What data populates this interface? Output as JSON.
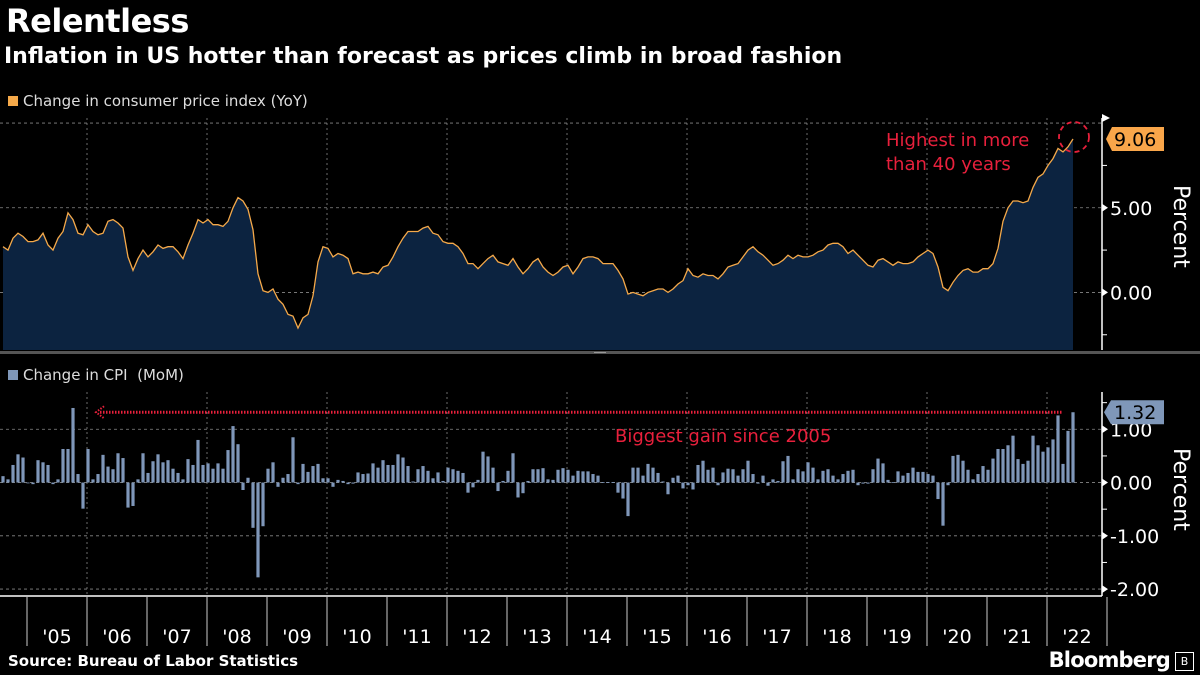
{
  "header": {
    "title": "Relentless",
    "subtitle": "Inflation in US hotter than forecast as prices climb in broad fashion"
  },
  "footer": {
    "source": "Source: Bureau of Labor Statistics",
    "brand": "Bloomberg"
  },
  "colors": {
    "background": "#000000",
    "yoy_line": "#f5a94a",
    "yoy_fill": "#0c2340",
    "mom_bars": "#7f97b9",
    "annotation": "#e8203c"
  },
  "chart_data": [
    {
      "type": "area",
      "legend": "Change in consumer price index (YoY)",
      "ylabel": "Percent",
      "y_ticks": [
        "5.00",
        "0.00"
      ],
      "ylim": [
        -3.4,
        10.3
      ],
      "x_start": "2004-08",
      "x_end": "2022-06",
      "frequency": "monthly",
      "last_value_label": "9.06",
      "annotation": [
        "Highest in more",
        "than 40 years"
      ],
      "values": [
        2.7,
        2.5,
        3.2,
        3.5,
        3.3,
        3.0,
        3.0,
        3.1,
        3.5,
        2.8,
        2.5,
        3.2,
        3.6,
        4.7,
        4.3,
        3.5,
        3.4,
        4.0,
        3.6,
        3.4,
        3.5,
        4.2,
        4.3,
        4.1,
        3.8,
        2.1,
        1.3,
        2.0,
        2.5,
        2.1,
        2.4,
        2.8,
        2.6,
        2.7,
        2.7,
        2.4,
        2.0,
        2.8,
        3.5,
        4.3,
        4.1,
        4.3,
        4.0,
        4.0,
        3.9,
        4.2,
        5.0,
        5.6,
        5.4,
        4.9,
        3.7,
        1.1,
        0.1,
        0.0,
        0.2,
        -0.4,
        -0.7,
        -1.3,
        -1.4,
        -2.1,
        -1.5,
        -1.3,
        -0.2,
        1.8,
        2.7,
        2.6,
        2.1,
        2.3,
        2.2,
        2.0,
        1.1,
        1.2,
        1.1,
        1.1,
        1.2,
        1.1,
        1.5,
        1.6,
        2.1,
        2.7,
        3.2,
        3.6,
        3.6,
        3.6,
        3.8,
        3.9,
        3.5,
        3.4,
        3.0,
        2.9,
        2.9,
        2.7,
        2.3,
        1.7,
        1.7,
        1.4,
        1.7,
        2.0,
        2.2,
        1.8,
        1.7,
        1.6,
        2.0,
        1.5,
        1.1,
        1.4,
        1.8,
        2.0,
        1.5,
        1.2,
        1.0,
        1.2,
        1.5,
        1.6,
        1.1,
        1.5,
        2.0,
        2.1,
        2.1,
        2.0,
        1.7,
        1.7,
        1.7,
        1.3,
        0.8,
        -0.1,
        0.0,
        -0.1,
        -0.2,
        0.0,
        0.1,
        0.2,
        0.2,
        0.0,
        0.2,
        0.5,
        0.7,
        1.4,
        1.0,
        0.9,
        1.1,
        1.0,
        1.0,
        0.8,
        1.1,
        1.5,
        1.6,
        1.7,
        2.1,
        2.5,
        2.7,
        2.4,
        2.2,
        1.9,
        1.6,
        1.7,
        1.9,
        2.2,
        2.0,
        2.2,
        2.1,
        2.1,
        2.2,
        2.4,
        2.5,
        2.8,
        2.9,
        2.9,
        2.7,
        2.3,
        2.5,
        2.2,
        1.9,
        1.6,
        1.5,
        1.9,
        2.0,
        1.8,
        1.6,
        1.8,
        1.7,
        1.7,
        1.8,
        2.1,
        2.3,
        2.5,
        2.3,
        1.5,
        0.3,
        0.1,
        0.6,
        1.0,
        1.3,
        1.4,
        1.2,
        1.2,
        1.4,
        1.4,
        1.7,
        2.6,
        4.2,
        5.0,
        5.4,
        5.4,
        5.3,
        5.4,
        6.2,
        6.8,
        7.0,
        7.5,
        7.9,
        8.5,
        8.3,
        8.6,
        9.06
      ]
    },
    {
      "type": "bar",
      "legend": "Change in CPI  (MoM)",
      "ylabel": "Percent",
      "y_ticks": [
        "1.00",
        "0.00",
        "-1.00",
        "-2.00"
      ],
      "ylim": [
        -2.13,
        1.7
      ],
      "x_start": "2004-08",
      "x_end": "2022-06",
      "frequency": "monthly",
      "last_value_label": "1.32",
      "annotation": "Biggest gain since 2005",
      "values": [
        0.12,
        0.06,
        0.33,
        0.53,
        0.47,
        0,
        -0.03,
        0.42,
        0.38,
        0.33,
        -0.03,
        0.06,
        0.63,
        0.63,
        1.4,
        0.16,
        -0.49,
        0.63,
        0.06,
        0.16,
        0.52,
        0.3,
        0.25,
        0.55,
        0.46,
        -0.47,
        -0.44,
        0.06,
        0.55,
        0.18,
        0.4,
        0.53,
        0.38,
        0.42,
        0.26,
        0.18,
        0.06,
        0.44,
        0.33,
        0.8,
        0.33,
        0.36,
        0.26,
        0.36,
        0.26,
        0.61,
        1.06,
        0.72,
        -0.14,
        0.09,
        -0.85,
        -1.78,
        -0.82,
        0.26,
        0.38,
        -0.08,
        0.09,
        0.16,
        0.85,
        -0.03,
        0.35,
        0.2,
        0.31,
        0.35,
        0.08,
        0.08,
        -0.08,
        0.05,
        0.03,
        -0.03,
        -0.02,
        0.19,
        0.16,
        0.17,
        0.36,
        0.28,
        0.42,
        0.33,
        0.33,
        0.53,
        0.47,
        0.31,
        0.02,
        0.25,
        0.31,
        0.22,
        0.08,
        0.19,
        0.03,
        0.28,
        0.25,
        0.22,
        0.18,
        -0.19,
        -0.09,
        0.05,
        0.58,
        0.49,
        0.28,
        -0.16,
        0.03,
        0.22,
        0.55,
        -0.28,
        -0.2,
        0.03,
        0.25,
        0.25,
        0.27,
        0.06,
        0.05,
        0.24,
        0.27,
        0.24,
        0.13,
        0.22,
        0.21,
        0.21,
        0.16,
        0.13,
        0.01,
        0.01,
        0.01,
        -0.19,
        -0.3,
        -0.63,
        0.28,
        0.28,
        0.13,
        0.35,
        0.28,
        0.18,
        0.02,
        -0.22,
        0.09,
        0.13,
        -0.11,
        -0.05,
        -0.13,
        0.33,
        0.41,
        0.24,
        0.28,
        -0.05,
        0.19,
        0.26,
        0.25,
        0.13,
        0.25,
        0.41,
        0.16,
        -0.02,
        0.13,
        -0.06,
        0.06,
        0.03,
        0.4,
        0.5,
        0.06,
        0.25,
        0.21,
        0.38,
        0.28,
        0.06,
        0.22,
        0.25,
        0.13,
        0.06,
        0.16,
        0.22,
        0.24,
        -0.05,
        -0.02,
        -0.02,
        0.25,
        0.45,
        0.36,
        0.05,
        0.01,
        0.21,
        0.13,
        0.18,
        0.28,
        0.2,
        0.2,
        0.16,
        0.13,
        -0.31,
        -0.81,
        -0.05,
        0.5,
        0.52,
        0.41,
        0.24,
        0.06,
        0.16,
        0.31,
        0.24,
        0.45,
        0.63,
        0.63,
        0.7,
        0.88,
        0.44,
        0.35,
        0.41,
        0.88,
        0.7,
        0.58,
        0.66,
        0.81,
        1.26,
        0.35,
        0.97,
        1.32
      ]
    }
  ],
  "x_axis": {
    "tick_labels": [
      "'05",
      "'06",
      "'07",
      "'08",
      "'09",
      "'10",
      "'11",
      "'12",
      "'13",
      "'14",
      "'15",
      "'16",
      "'17",
      "'18",
      "'19",
      "'20",
      "'21",
      "'22"
    ]
  }
}
